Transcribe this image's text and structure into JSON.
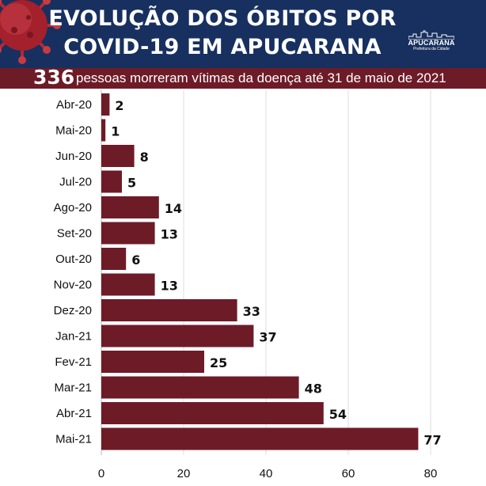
{
  "header": {
    "title_line1": "EVOLUÇÃO DOS ÓBITOS POR",
    "title_line2": "COVID-19 EM APUCARANA",
    "logo_name": "APUCARANA",
    "logo_sub": "Prefeitura da Cidade",
    "virus_icon": "coronavirus-icon",
    "colors": {
      "header_bg": "#17305f",
      "subtitle_bg": "#6e1b28",
      "bar": "#6e1b28"
    }
  },
  "subtitle": {
    "count": "336",
    "text": "pessoas morreram vítimas da doença até 31 de maio de 2021"
  },
  "chart_data": {
    "type": "bar",
    "orientation": "horizontal",
    "categories": [
      "Abr-20",
      "Mai-20",
      "Jun-20",
      "Jul-20",
      "Ago-20",
      "Set-20",
      "Out-20",
      "Nov-20",
      "Dez-20",
      "Jan-21",
      "Fev-21",
      "Mar-21",
      "Abr-21",
      "Mai-21"
    ],
    "values": [
      2,
      1,
      8,
      5,
      14,
      13,
      6,
      13,
      33,
      37,
      25,
      48,
      54,
      77
    ],
    "xlim": [
      0,
      80
    ],
    "xticks": [
      0,
      20,
      40,
      60,
      80
    ],
    "grid": "vertical",
    "data_labels": true,
    "color": "#6e1b28"
  }
}
